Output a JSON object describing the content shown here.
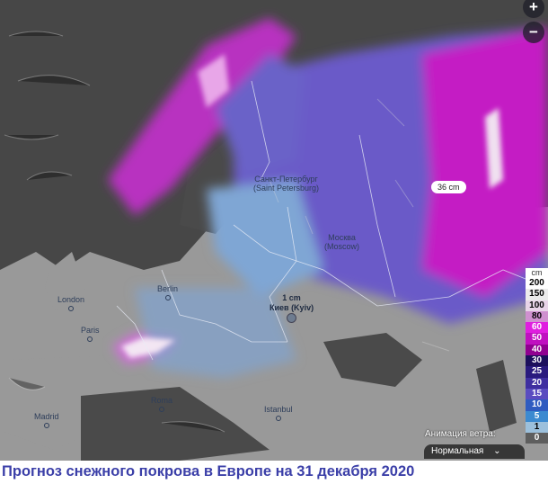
{
  "map": {
    "cities": [
      {
        "name": "Санкт-Петербург",
        "alt": "(Saint Petersburg)"
      },
      {
        "name": "Москва",
        "alt": "(Moscow)"
      },
      {
        "name": "London"
      },
      {
        "name": "Berlin"
      },
      {
        "name": "Paris"
      },
      {
        "name": "Roma"
      },
      {
        "name": "Madrid"
      },
      {
        "name": "Istanbul"
      }
    ],
    "kyiv": {
      "value": "1 cm",
      "name": "Киев (Kyiv)"
    },
    "bubble": "36 cm",
    "zoom_in": "+",
    "zoom_out": "−"
  },
  "legend": {
    "unit": "cm",
    "items": [
      {
        "label": "200",
        "color": "#ffffff",
        "text": "#000"
      },
      {
        "label": "150",
        "color": "#ececec",
        "text": "#000"
      },
      {
        "label": "100",
        "color": "#e8d4e8",
        "text": "#000"
      },
      {
        "label": "80",
        "color": "#cf90cf",
        "text": "#000"
      },
      {
        "label": "60",
        "color": "#e01ee0",
        "text": "#fff"
      },
      {
        "label": "50",
        "color": "#c010c0",
        "text": "#fff"
      },
      {
        "label": "40",
        "color": "#900090",
        "text": "#fff"
      },
      {
        "label": "30",
        "color": "#1c0f5c",
        "text": "#fff"
      },
      {
        "label": "25",
        "color": "#2a1a7e",
        "text": "#fff"
      },
      {
        "label": "20",
        "color": "#3f2fa0",
        "text": "#fff"
      },
      {
        "label": "15",
        "color": "#5a4cc0",
        "text": "#fff"
      },
      {
        "label": "10",
        "color": "#2f5cc0",
        "text": "#fff"
      },
      {
        "label": "5",
        "color": "#3c8ad0",
        "text": "#fff"
      },
      {
        "label": "1",
        "color": "#9cc0dc",
        "text": "#000"
      },
      {
        "label": "0",
        "color": "#5e5e5e",
        "text": "#fff"
      }
    ]
  },
  "wind_animation": {
    "label": "Анимация ветра:",
    "selected": "Нормальная"
  },
  "caption": "Прогноз снежного покрова в Европе на 31 декабря 2020"
}
